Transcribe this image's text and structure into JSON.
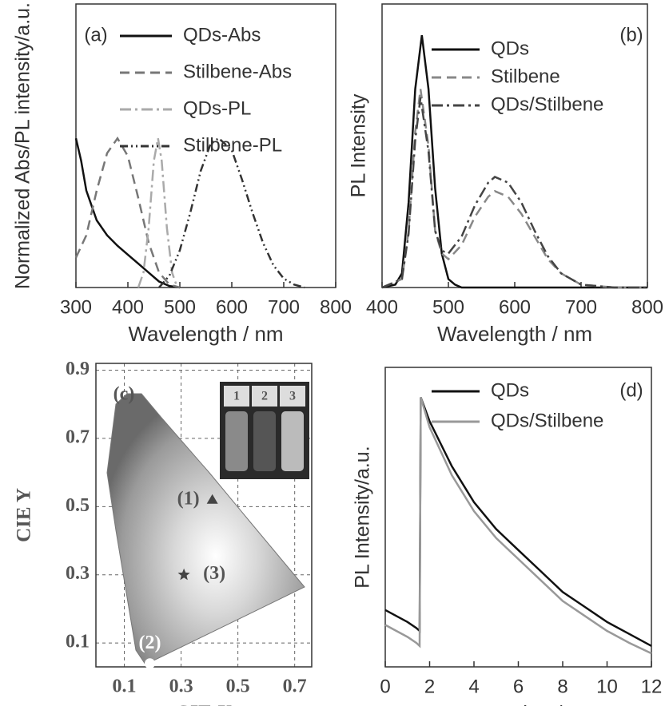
{
  "chart_data": [
    {
      "type": "line",
      "panel_label": "(a)",
      "xlabel": "Wavelength / nm",
      "ylabel": "Normalized Abs/PL intensity/a.u.",
      "xlim": [
        300,
        800
      ],
      "xticks": [
        300,
        400,
        500,
        600,
        700,
        800
      ],
      "ylim": [
        0,
        1.9
      ],
      "series": [
        {
          "name": "QDs-Abs",
          "color": "#111111",
          "dash": "solid",
          "x": [
            300,
            310,
            320,
            340,
            360,
            380,
            400,
            420,
            440,
            460,
            480,
            500
          ],
          "values": [
            1.0,
            0.85,
            0.65,
            0.45,
            0.35,
            0.28,
            0.22,
            0.16,
            0.1,
            0.04,
            0.01,
            0
          ]
        },
        {
          "name": "Stilbene-Abs",
          "color": "#777777",
          "dash": "dash",
          "x": [
            300,
            320,
            340,
            360,
            380,
            400,
            420,
            440,
            460,
            480,
            500
          ],
          "values": [
            0.2,
            0.35,
            0.65,
            0.9,
            1.0,
            0.88,
            0.6,
            0.3,
            0.1,
            0.02,
            0
          ]
        },
        {
          "name": "QDs-PL",
          "color": "#aaaaaa",
          "dash": "dashdot",
          "x": [
            420,
            430,
            440,
            450,
            458,
            465,
            475,
            485,
            495
          ],
          "values": [
            0,
            0.1,
            0.4,
            0.85,
            1.0,
            0.85,
            0.4,
            0.1,
            0
          ]
        },
        {
          "name": "Stilbene-PL",
          "color": "#333333",
          "dash": "dashdotdot",
          "x": [
            460,
            480,
            500,
            520,
            540,
            560,
            575,
            600,
            620,
            640,
            660,
            680,
            700,
            720,
            740
          ],
          "values": [
            0,
            0.08,
            0.25,
            0.5,
            0.78,
            0.97,
            1.0,
            0.92,
            0.72,
            0.5,
            0.3,
            0.15,
            0.06,
            0.02,
            0
          ]
        }
      ]
    },
    {
      "type": "line",
      "panel_label": "(b)",
      "xlabel": "Wavelength / nm",
      "ylabel": "PL Intensity",
      "xlim": [
        400,
        800
      ],
      "xticks": [
        400,
        500,
        600,
        700,
        800
      ],
      "ylim": [
        0,
        1
      ],
      "series": [
        {
          "name": "QDs",
          "color": "#111111",
          "dash": "solid",
          "x": [
            400,
            420,
            430,
            440,
            450,
            460,
            470,
            480,
            490,
            500,
            510,
            520,
            800
          ],
          "values": [
            0,
            0.01,
            0.05,
            0.3,
            0.7,
            0.89,
            0.7,
            0.35,
            0.12,
            0.03,
            0.01,
            0,
            0
          ]
        },
        {
          "name": "Stilbene",
          "color": "#888888",
          "dash": "dash",
          "x": [
            400,
            430,
            440,
            450,
            458,
            470,
            480,
            490,
            500,
            520,
            540,
            560,
            570,
            590,
            610,
            630,
            650,
            670,
            700,
            750,
            800
          ],
          "values": [
            0,
            0.03,
            0.2,
            0.55,
            0.7,
            0.5,
            0.2,
            0.12,
            0.1,
            0.15,
            0.25,
            0.32,
            0.34,
            0.32,
            0.26,
            0.18,
            0.1,
            0.05,
            0.01,
            0,
            0
          ]
        },
        {
          "name": "QDs/Stilbene",
          "color": "#444444",
          "dash": "dashdot",
          "x": [
            400,
            430,
            440,
            450,
            458,
            470,
            480,
            490,
            500,
            520,
            540,
            560,
            570,
            590,
            610,
            630,
            650,
            670,
            700,
            750,
            800
          ],
          "values": [
            0,
            0.03,
            0.19,
            0.52,
            0.67,
            0.48,
            0.2,
            0.13,
            0.12,
            0.18,
            0.29,
            0.37,
            0.39,
            0.37,
            0.3,
            0.2,
            0.11,
            0.05,
            0.01,
            0,
            0
          ]
        }
      ]
    },
    {
      "type": "scatter",
      "panel_label": "(c)",
      "xlabel": "CIE X",
      "ylabel": "CIE Y",
      "xlim": [
        0,
        0.76
      ],
      "xticks": [
        0.1,
        0.3,
        0.5,
        0.7
      ],
      "ylim": [
        0.03,
        0.92
      ],
      "yticks": [
        0.1,
        0.3,
        0.5,
        0.7,
        0.9
      ],
      "grid": true,
      "inset_labels": [
        "1",
        "2",
        "3"
      ],
      "points": [
        {
          "label": "(1)",
          "x": 0.41,
          "y": 0.52,
          "marker": "triangle"
        },
        {
          "label": "(2)",
          "x": 0.19,
          "y": 0.04,
          "marker": "circle"
        },
        {
          "label": "(3)",
          "x": 0.31,
          "y": 0.3,
          "marker": "star"
        }
      ]
    },
    {
      "type": "line",
      "panel_label": "(d)",
      "xlabel": "Decay time/ns",
      "ylabel": "PL Intensity/a.u.",
      "xlim": [
        0,
        12
      ],
      "xticks": [
        0,
        2,
        4,
        6,
        8,
        10,
        12
      ],
      "ylim": [
        0,
        1
      ],
      "series": [
        {
          "name": "QDs",
          "color": "#111111",
          "dash": "solid",
          "x": [
            0,
            0.5,
            1,
            1.4,
            1.55,
            1.6,
            2,
            3,
            4,
            5,
            6,
            7,
            8,
            9,
            10,
            11,
            12
          ],
          "values": [
            0.19,
            0.17,
            0.15,
            0.13,
            0.12,
            0.9,
            0.82,
            0.67,
            0.55,
            0.46,
            0.39,
            0.32,
            0.25,
            0.2,
            0.15,
            0.11,
            0.07
          ]
        },
        {
          "name": "QDs/Stilbene",
          "color": "#999999",
          "dash": "solid",
          "x": [
            0,
            0.5,
            1,
            1.4,
            1.55,
            1.6,
            2,
            3,
            4,
            5,
            6,
            7,
            8,
            9,
            10,
            11,
            12
          ],
          "values": [
            0.14,
            0.12,
            0.1,
            0.08,
            0.07,
            0.9,
            0.8,
            0.64,
            0.52,
            0.43,
            0.36,
            0.29,
            0.22,
            0.17,
            0.12,
            0.08,
            0.045
          ]
        }
      ]
    }
  ]
}
